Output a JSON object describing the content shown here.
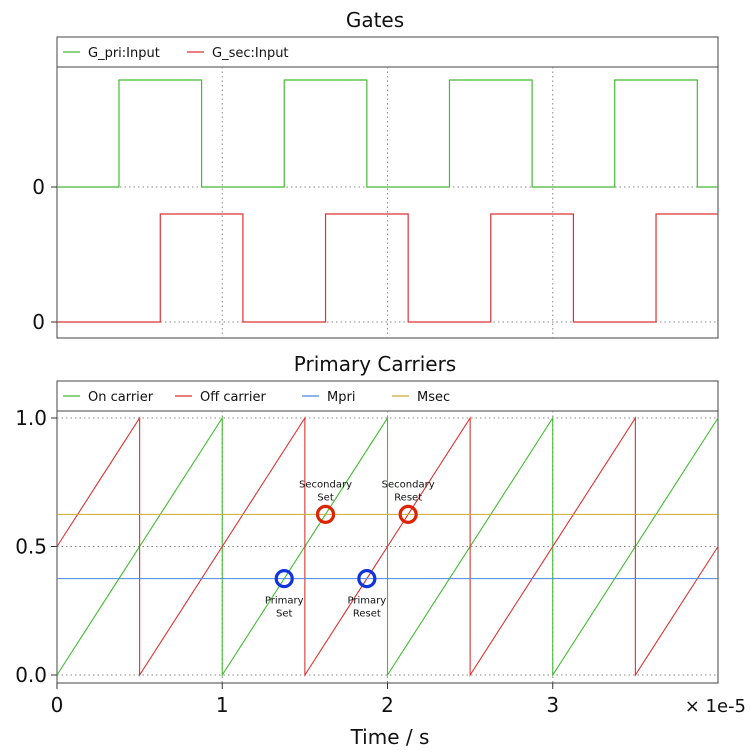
{
  "chart_data": [
    {
      "type": "line",
      "title": "Gates",
      "xlim": [
        0,
        4e-05
      ],
      "grid": true,
      "legend_placement": "top",
      "yticks": [
        "0",
        "0"
      ],
      "series": [
        {
          "name": "G_pri:Input",
          "color": "#44bb33",
          "period": 1e-05,
          "high_intervals": [
            [
              3.75e-06,
              8.75e-06
            ],
            [
              1.375e-05,
              1.875e-05
            ],
            [
              2.375e-05,
              2.875e-05
            ],
            [
              3.375e-05,
              3.875e-05
            ]
          ]
        },
        {
          "name": "G_sec:Input",
          "color": "#dd3333",
          "period": 1e-05,
          "high_intervals": [
            [
              6.25e-06,
              1.125e-05
            ],
            [
              1.625e-05,
              2.125e-05
            ],
            [
              2.625e-05,
              3.125e-05
            ],
            [
              3.625e-05,
              4e-05
            ]
          ]
        }
      ]
    },
    {
      "type": "line",
      "title": "Primary Carriers",
      "xlabel": "Time / s",
      "x_scale_label": "× 1e-5",
      "xlim": [
        0,
        4e-05
      ],
      "ylim": [
        0,
        1
      ],
      "xticks": [
        "0",
        "1",
        "2",
        "3"
      ],
      "yticks": [
        "0.0",
        "0.5",
        "1.0"
      ],
      "grid": true,
      "legend_placement": "top",
      "series": [
        {
          "name": "On carrier",
          "color": "#44bb33",
          "kind": "sawtooth",
          "period": 1e-05,
          "value_at_0": 0.0
        },
        {
          "name": "Off carrier",
          "color": "#dd3333",
          "kind": "sawtooth",
          "period": 1e-05,
          "value_at_0": 0.5
        },
        {
          "name": "Mpri",
          "color": "#4488dd",
          "kind": "constant",
          "value": 0.375
        },
        {
          "name": "Msec",
          "color": "#ccaa33",
          "kind": "constant",
          "value": 0.625
        }
      ],
      "annotations": [
        {
          "label": [
            "Primary",
            "Set"
          ],
          "x": 1.375e-05,
          "y": 0.375,
          "color": "#1133dd",
          "label_pos": "below"
        },
        {
          "label": [
            "Primary",
            "Reset"
          ],
          "x": 1.875e-05,
          "y": 0.375,
          "color": "#1133dd",
          "label_pos": "below"
        },
        {
          "label": [
            "Secondary",
            "Set"
          ],
          "x": 1.625e-05,
          "y": 0.625,
          "color": "#dd2200",
          "label_pos": "above"
        },
        {
          "label": [
            "Secondary",
            "Reset"
          ],
          "x": 2.125e-05,
          "y": 0.625,
          "color": "#dd2200",
          "label_pos": "above"
        }
      ]
    }
  ]
}
